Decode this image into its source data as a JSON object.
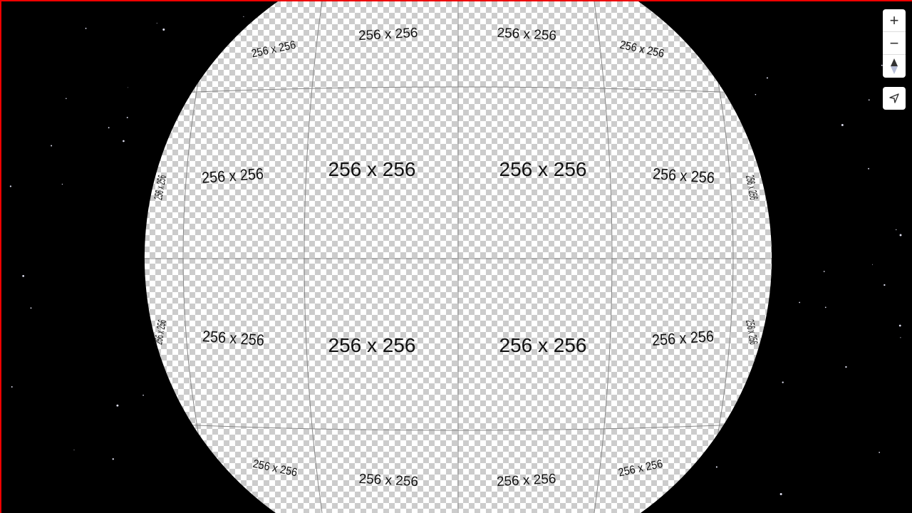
{
  "map": {
    "tile_label": "256 x 256",
    "background_color": "#000000",
    "checker_light": "#ffffff",
    "checker_dark": "#cccccc",
    "border_color": "#ee0000"
  },
  "controls": {
    "zoom_in": {
      "icon": "plus-icon",
      "label": "+"
    },
    "zoom_out": {
      "icon": "minus-icon",
      "label": "−"
    },
    "compass": {
      "icon": "compass-icon"
    },
    "geolocate": {
      "icon": "locate-arrow-icon"
    }
  }
}
